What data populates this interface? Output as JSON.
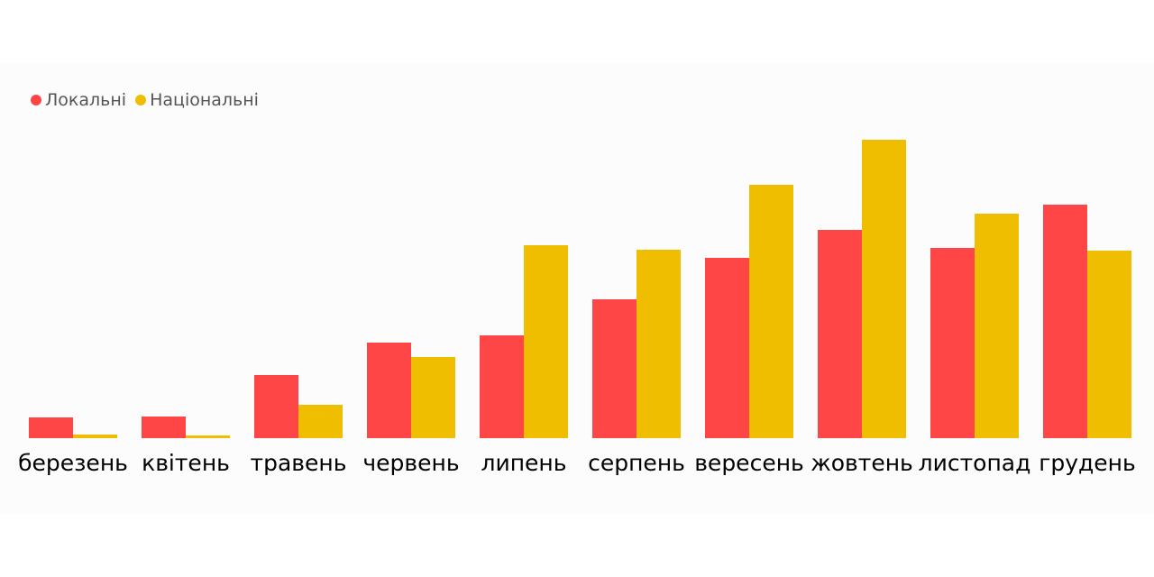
{
  "chart_data": {
    "type": "bar",
    "title": "",
    "xlabel": "",
    "ylabel": "",
    "ylim": [
      0,
      340
    ],
    "grid": false,
    "legend_position": "top-left",
    "categories": [
      "березень",
      "квітень",
      "травень",
      "червень",
      "липень",
      "серпень",
      "вересень",
      "жовтень",
      "листопад",
      "грудень"
    ],
    "series": [
      {
        "name": "Локальні",
        "color": "#ff4646",
        "values": [
          23,
          24,
          70,
          106,
          114,
          154,
          200,
          231,
          211,
          259
        ]
      },
      {
        "name": "Національні",
        "color": "#f0be00",
        "values": [
          4,
          3,
          37,
          90,
          214,
          209,
          281,
          331,
          249,
          208
        ]
      }
    ]
  }
}
